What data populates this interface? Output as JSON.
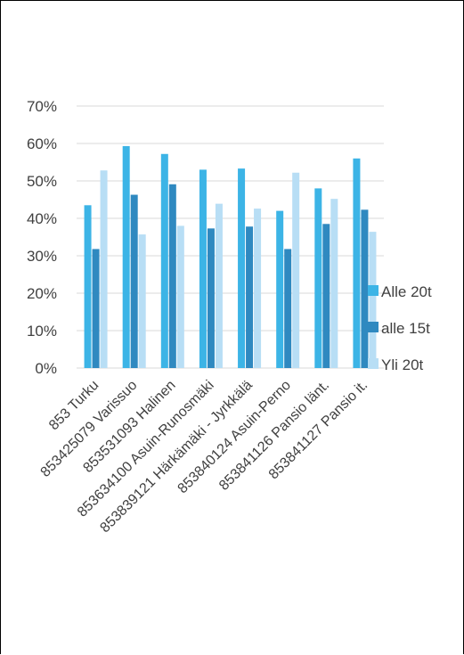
{
  "chart_data": {
    "type": "bar",
    "categories": [
      "853 Turku",
      "853425079 Varissuo",
      "853531093 Halinen",
      "853634100 Asuin-Runosmäki",
      "853839121 Härkämäki - Jyrkkälä",
      "853840124 Asuin-Perno",
      "853841126 Pansio länt.",
      "853841127 Pansio it."
    ],
    "series": [
      {
        "name": "Alle 20t",
        "color": "#3cb4e6",
        "values": [
          43.5,
          59.3,
          57.2,
          53.0,
          53.3,
          42.0,
          48.0,
          56.0
        ]
      },
      {
        "name": "alle 15t",
        "color": "#2f89c0",
        "values": [
          31.8,
          46.3,
          49.1,
          37.3,
          37.8,
          31.8,
          38.5,
          42.3
        ]
      },
      {
        "name": "Yli 20t",
        "color": "#b8def5",
        "values": [
          52.8,
          35.7,
          38.0,
          43.9,
          42.6,
          52.2,
          45.2,
          36.4
        ]
      }
    ],
    "yticks": [
      "0%",
      "10%",
      "20%",
      "30%",
      "40%",
      "50%",
      "60%",
      "70%"
    ],
    "ylim": [
      0,
      70
    ],
    "grid": true,
    "legend": "right",
    "gridColor": "#d9d9d9",
    "textColor": "#404040"
  }
}
